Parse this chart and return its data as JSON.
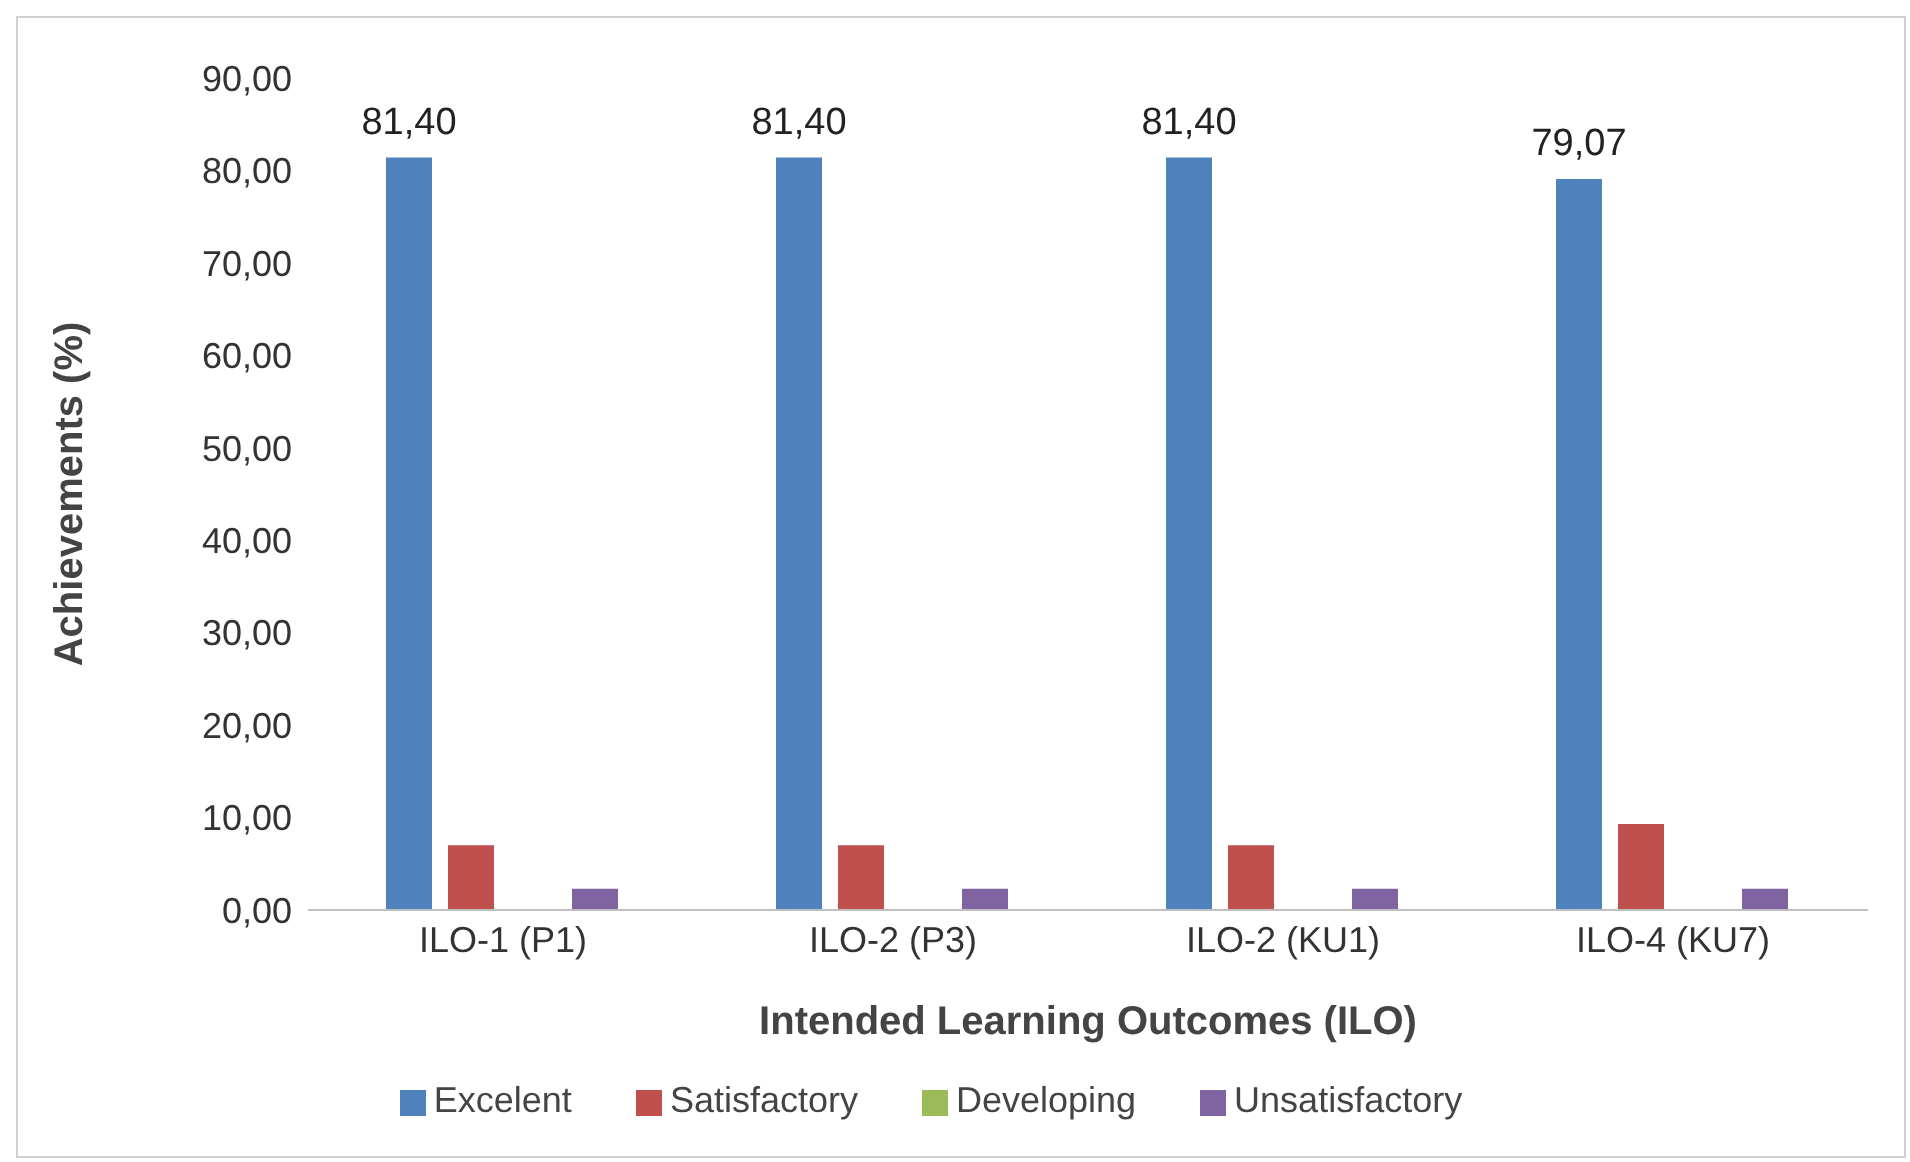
{
  "chart_data": {
    "type": "bar",
    "xlabel": "Intended Learning Outcomes (ILO)",
    "ylabel": "Achievements (%)",
    "categories": [
      "ILO-1 (P1)",
      "ILO-2 (P3)",
      "ILO-2 (KU1)",
      "ILO-4 (KU7)"
    ],
    "series": [
      {
        "name": "Excelent",
        "color": "#4f81bd",
        "values": [
          81.4,
          81.4,
          81.4,
          79.07
        ],
        "value_labels": [
          "81,40",
          "81,40",
          "81,40",
          "79,07"
        ]
      },
      {
        "name": "Satisfactory",
        "color": "#c0504d",
        "values": [
          7.0,
          7.0,
          7.0,
          9.3
        ]
      },
      {
        "name": "Developing",
        "color": "#9bbb59",
        "values": [
          0,
          0,
          0,
          0
        ]
      },
      {
        "name": "Unsatisfactory",
        "color": "#8064a2",
        "values": [
          2.3,
          2.3,
          2.3,
          2.3
        ]
      }
    ],
    "ylim": [
      0,
      90
    ],
    "yticks": [
      {
        "value": 0,
        "label": "0,00"
      },
      {
        "value": 10,
        "label": "10,00"
      },
      {
        "value": 20,
        "label": "20,00"
      },
      {
        "value": 30,
        "label": "30,00"
      },
      {
        "value": 40,
        "label": "40,00"
      },
      {
        "value": 50,
        "label": "50,00"
      },
      {
        "value": 60,
        "label": "60,00"
      },
      {
        "value": 70,
        "label": "70,00"
      },
      {
        "value": 80,
        "label": "80,00"
      },
      {
        "value": 90,
        "label": "90,00"
      }
    ],
    "legend": "bottom"
  }
}
